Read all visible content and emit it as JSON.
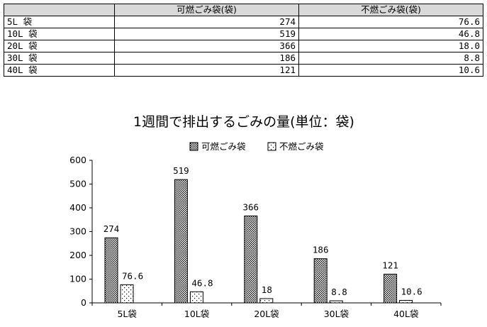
{
  "table": {
    "headers": [
      "",
      "可燃ごみ袋(袋)",
      "不燃ごみ袋(袋)"
    ],
    "rows": [
      {
        "label": "5L 袋",
        "burnable": "274",
        "nonburnable": "76.6"
      },
      {
        "label": "10L 袋",
        "burnable": "519",
        "nonburnable": "46.8"
      },
      {
        "label": "20L 袋",
        "burnable": "366",
        "nonburnable": "18.0"
      },
      {
        "label": "30L 袋",
        "burnable": "186",
        "nonburnable": "8.8"
      },
      {
        "label": "40L 袋",
        "burnable": "121",
        "nonburnable": "10.6"
      }
    ]
  },
  "chart_data": {
    "type": "bar",
    "title": "1週間で排出するごみの量(単位：袋)",
    "categories": [
      "5L袋",
      "10L袋",
      "20L袋",
      "30L袋",
      "40L袋"
    ],
    "series": [
      {
        "name": "可燃ごみ袋",
        "values": [
          274,
          519,
          366,
          186,
          121
        ],
        "labels": [
          "274",
          "519",
          "366",
          "186",
          "121"
        ],
        "pattern": "dense-dots"
      },
      {
        "name": "不燃ごみ袋",
        "values": [
          76.6,
          46.8,
          18,
          8.8,
          10.6
        ],
        "labels": [
          "76.6",
          "46.8",
          "18",
          "8.8",
          "10.6"
        ],
        "pattern": "sparse-dots"
      }
    ],
    "ylim": [
      0,
      600
    ],
    "yticks": [
      "0",
      "100",
      "200",
      "300",
      "400",
      "500",
      "600"
    ],
    "legend_position": "top-center",
    "grid": false
  }
}
